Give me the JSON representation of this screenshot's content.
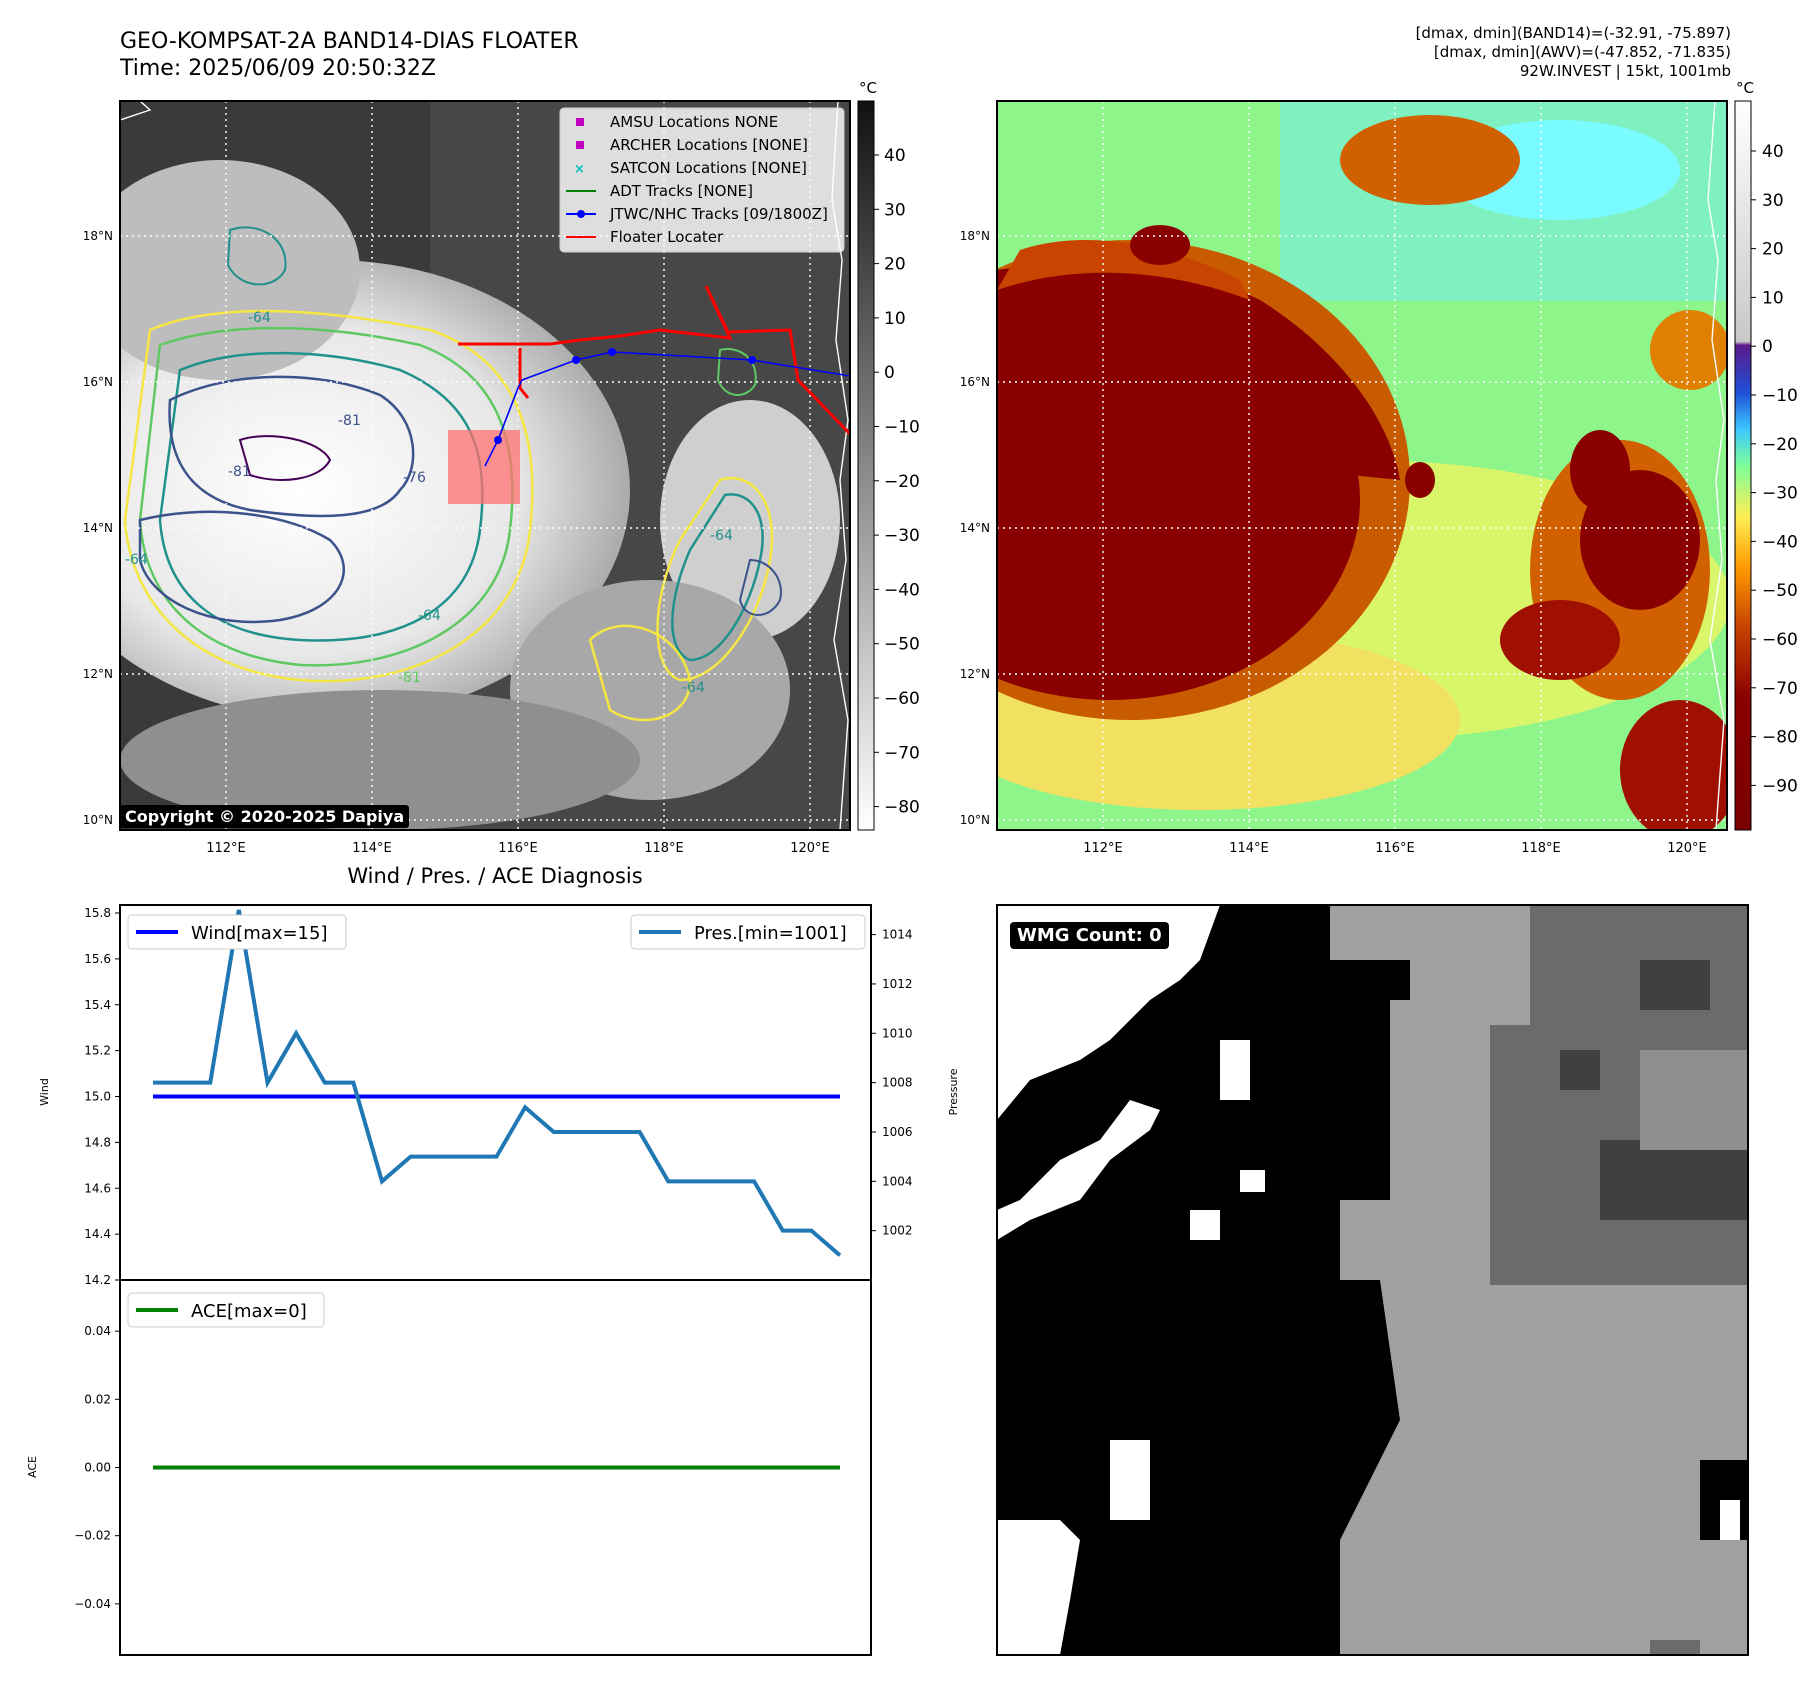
{
  "header": {
    "title_line1": "GEO-KOMPSAT-2A BAND14-DIAS FLOATER",
    "title_line2": "Time: 2025/06/09 20:50:32Z",
    "stats_line1": "[dmax, dmin](BAND14)=(-32.91, -75.897)",
    "stats_line2": "[dmax, dmin](AWV)=(-47.852, -71.835)",
    "stats_line3": "92W.INVEST | 15kt, 1001mb"
  },
  "copyright": "Copyright © 2020-2025 Dapiya",
  "map": {
    "lon_ticks": [
      "112°E",
      "114°E",
      "116°E",
      "118°E",
      "120°E"
    ],
    "lat_ticks": [
      "18°N",
      "16°N",
      "14°N",
      "12°N",
      "10°N"
    ],
    "contour_labels": [
      "-64",
      "-76",
      "-81",
      "-64",
      "-64",
      "-81",
      "-81",
      "-64",
      "-64"
    ]
  },
  "legend": {
    "items": [
      {
        "label": "AMSU Locations NONE",
        "color": "#bf00bf",
        "marker": "square"
      },
      {
        "label": "ARCHER Locations [NONE]",
        "color": "#bf00bf",
        "marker": "square"
      },
      {
        "label": "SATCON Locations [NONE]",
        "color": "#00bfbf",
        "marker": "x"
      },
      {
        "label": "ADT Tracks [NONE]",
        "color": "#008000",
        "marker": "line"
      },
      {
        "label": "JTWC/NHC Tracks [09/1800Z]",
        "color": "#0000ff",
        "marker": "line-dot"
      },
      {
        "label": "Floater Locater",
        "color": "#ff0000",
        "marker": "line"
      }
    ]
  },
  "colorbar_gray": {
    "unit": "°C",
    "ticks": [
      "40",
      "30",
      "20",
      "10",
      "0",
      "−10",
      "−20",
      "−30",
      "−40",
      "−50",
      "−60",
      "−70",
      "−80"
    ]
  },
  "colorbar_awv": {
    "unit": "°C",
    "ticks": [
      "40",
      "30",
      "20",
      "10",
      "0",
      "−10",
      "−20",
      "−30",
      "−40",
      "−50",
      "−60",
      "−70",
      "−80",
      "−90"
    ]
  },
  "wmg": {
    "label": "WMG Count: 0"
  },
  "chart_data": [
    {
      "type": "line",
      "title": "Wind / Pres. / ACE Diagnosis",
      "ylabel": "Wind",
      "ylabel_right": "Pressure",
      "ylim": [
        14.2,
        15.8
      ],
      "ylim_right": [
        1000.0,
        1015.2
      ],
      "y_ticks": [
        "15.8",
        "15.6",
        "15.4",
        "15.2",
        "15.0",
        "14.8",
        "14.6",
        "14.4",
        "14.2"
      ],
      "y_ticks_right": [
        "1014",
        "1012",
        "1010",
        "1008",
        "1006",
        "1004",
        "1002"
      ],
      "series": [
        {
          "name": "Wind[max=15]",
          "color": "#0000ff",
          "values": [
            15,
            15,
            15,
            15,
            15,
            15,
            15,
            15,
            15,
            15,
            15,
            15,
            15,
            15,
            15,
            15,
            15,
            15,
            15,
            15,
            15,
            15,
            15,
            15,
            15
          ]
        },
        {
          "name": "Pres.[min=1001]",
          "color": "#1f77b4",
          "axis": "right",
          "values": [
            1008,
            1008,
            1008,
            1015,
            1008,
            1010,
            1008,
            1008,
            1004,
            1005,
            1005,
            1005,
            1005,
            1007,
            1006,
            1006,
            1006,
            1006,
            1004,
            1004,
            1004,
            1004,
            1002,
            1002,
            1001
          ]
        }
      ]
    },
    {
      "type": "line",
      "ylabel": "ACE",
      "ylim": [
        -0.055,
        0.055
      ],
      "y_ticks": [
        "0.04",
        "0.02",
        "0.00",
        "−0.02",
        "−0.04"
      ],
      "series": [
        {
          "name": "ACE[max=0]",
          "color": "#008000",
          "values": [
            0,
            0,
            0,
            0,
            0,
            0,
            0,
            0,
            0,
            0,
            0,
            0,
            0,
            0,
            0,
            0,
            0,
            0,
            0,
            0,
            0,
            0,
            0,
            0,
            0
          ]
        }
      ]
    }
  ]
}
